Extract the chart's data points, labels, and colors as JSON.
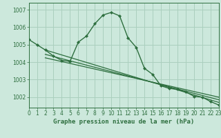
{
  "title": "Graphe pression niveau de la mer (hPa)",
  "background_color": "#cce8dc",
  "grid_color": "#aacfbe",
  "line_color": "#2d6e3e",
  "xlim": [
    0,
    23
  ],
  "ylim": [
    1001.4,
    1007.4
  ],
  "yticks": [
    1002,
    1003,
    1004,
    1005,
    1006,
    1007
  ],
  "xticks": [
    0,
    1,
    2,
    3,
    4,
    5,
    6,
    7,
    8,
    9,
    10,
    11,
    12,
    13,
    14,
    15,
    16,
    17,
    18,
    19,
    20,
    21,
    22,
    23
  ],
  "main_series_x": [
    0,
    1,
    2,
    3,
    4,
    5,
    6,
    7,
    8,
    9,
    10,
    11,
    12,
    13,
    14,
    15,
    16,
    17,
    18,
    19,
    20,
    21,
    22,
    23
  ],
  "main_series_y": [
    1005.3,
    1005.0,
    1004.7,
    1004.35,
    1004.1,
    1004.05,
    1005.15,
    1005.5,
    1006.2,
    1006.7,
    1006.85,
    1006.65,
    1005.4,
    1004.85,
    1003.65,
    1003.3,
    1002.65,
    1002.5,
    1002.45,
    1002.3,
    1002.05,
    1002.0,
    1001.75,
    1001.55
  ],
  "line1_x": [
    2,
    23
  ],
  "line1_y": [
    1004.7,
    1001.7
  ],
  "line2_x": [
    2,
    23
  ],
  "line2_y": [
    1004.45,
    1001.85
  ],
  "line3_x": [
    2,
    23
  ],
  "line3_y": [
    1004.25,
    1002.0
  ],
  "xlabel_fontsize": 6.5,
  "tick_fontsize": 5.5,
  "ylabel_fontsize": 5.5
}
